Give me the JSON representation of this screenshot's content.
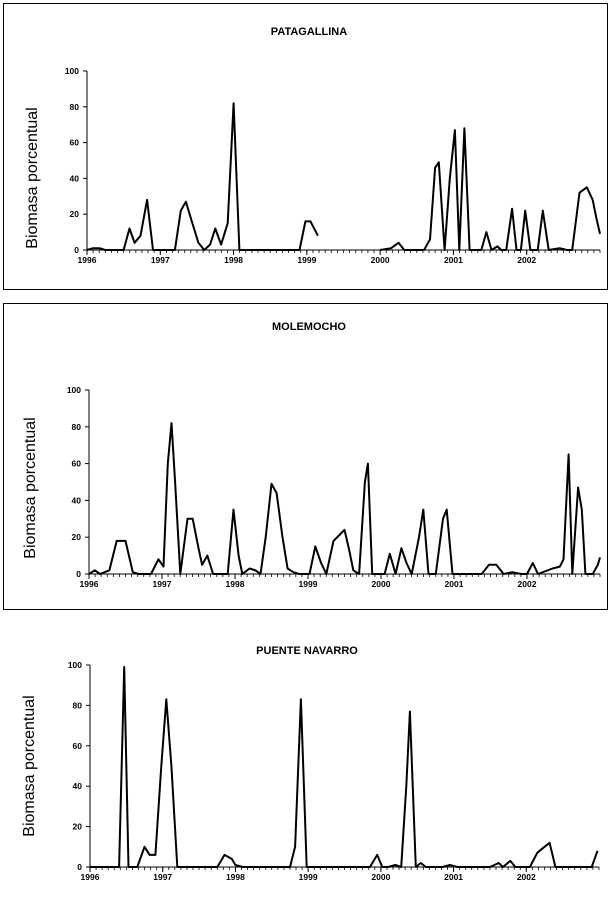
{
  "chart_data": [
    {
      "type": "line",
      "title": "PATAGALLINA",
      "ylabel": "Biomasa porcentual",
      "xlabel": "",
      "ylim": [
        0,
        100
      ],
      "yticks": [
        "0",
        "20",
        "40",
        "60",
        "80",
        "100"
      ],
      "xlim": [
        1996.0,
        2003.0
      ],
      "xticks": [
        "1996",
        "1997",
        "1998",
        "1999",
        "2000",
        "2001",
        "2002"
      ],
      "grid": false,
      "legend": "none",
      "line_color": "#000000",
      "segments": [
        [
          [
            1996.0,
            0
          ],
          [
            1996.08,
            1
          ],
          [
            1996.17,
            1
          ],
          [
            1996.25,
            0
          ],
          [
            1996.5,
            0
          ],
          [
            1996.58,
            12
          ],
          [
            1996.65,
            4
          ],
          [
            1996.73,
            8
          ],
          [
            1996.82,
            28
          ],
          [
            1996.9,
            0
          ],
          [
            1997.2,
            0
          ],
          [
            1997.28,
            22
          ],
          [
            1997.35,
            27
          ],
          [
            1997.43,
            16
          ],
          [
            1997.52,
            4
          ],
          [
            1997.6,
            0
          ],
          [
            1997.68,
            3
          ],
          [
            1997.75,
            12
          ],
          [
            1997.83,
            3
          ],
          [
            1997.92,
            15
          ],
          [
            1998.0,
            82
          ],
          [
            1998.08,
            0
          ],
          [
            1998.9,
            0
          ],
          [
            1998.98,
            16
          ],
          [
            1999.05,
            16
          ],
          [
            1999.15,
            8
          ]
        ],
        [
          [
            2000.0,
            0
          ],
          [
            2000.15,
            1
          ],
          [
            2000.25,
            4
          ],
          [
            2000.33,
            0
          ],
          [
            2000.6,
            0
          ],
          [
            2000.68,
            6
          ],
          [
            2000.75,
            46
          ],
          [
            2000.8,
            49
          ],
          [
            2000.88,
            0
          ],
          [
            2000.95,
            40
          ],
          [
            2001.02,
            67
          ],
          [
            2001.08,
            0
          ],
          [
            2001.15,
            68
          ],
          [
            2001.22,
            0
          ],
          [
            2001.38,
            0
          ],
          [
            2001.45,
            10
          ],
          [
            2001.52,
            0
          ],
          [
            2001.6,
            2
          ],
          [
            2001.65,
            0
          ],
          [
            2001.72,
            0
          ],
          [
            2001.8,
            23
          ],
          [
            2001.86,
            0
          ],
          [
            2001.92,
            0
          ],
          [
            2001.98,
            22
          ],
          [
            2002.05,
            0
          ],
          [
            2002.15,
            0
          ],
          [
            2002.22,
            22
          ],
          [
            2002.3,
            0
          ],
          [
            2002.45,
            1
          ],
          [
            2002.55,
            0
          ],
          [
            2002.62,
            0
          ],
          [
            2002.72,
            32
          ],
          [
            2002.82,
            35
          ],
          [
            2002.9,
            28
          ],
          [
            2002.95,
            18
          ],
          [
            2003.0,
            9
          ]
        ]
      ]
    },
    {
      "type": "line",
      "title": "MOLEMOCHO",
      "ylabel": "Biomasa porcentual",
      "xlabel": "",
      "ylim": [
        0,
        100
      ],
      "yticks": [
        "0",
        "20",
        "40",
        "60",
        "80",
        "100"
      ],
      "xlim": [
        1996.0,
        2003.0
      ],
      "xticks": [
        "1996",
        "1997",
        "1998",
        "1999",
        "2000",
        "2001",
        "2002"
      ],
      "grid": false,
      "legend": "none",
      "line_color": "#000000",
      "segments": [
        [
          [
            1996.0,
            0
          ],
          [
            1996.08,
            2
          ],
          [
            1996.15,
            0
          ],
          [
            1996.28,
            2
          ],
          [
            1996.38,
            18
          ],
          [
            1996.5,
            18
          ],
          [
            1996.6,
            1
          ],
          [
            1996.68,
            0
          ],
          [
            1996.85,
            0
          ],
          [
            1996.95,
            8
          ],
          [
            1997.02,
            4
          ],
          [
            1997.08,
            60
          ],
          [
            1997.13,
            82
          ],
          [
            1997.18,
            50
          ],
          [
            1997.25,
            0
          ],
          [
            1997.35,
            30
          ],
          [
            1997.42,
            30
          ],
          [
            1997.5,
            14
          ],
          [
            1997.55,
            5
          ],
          [
            1997.62,
            10
          ],
          [
            1997.7,
            0
          ],
          [
            1997.9,
            0
          ],
          [
            1997.98,
            35
          ],
          [
            1998.05,
            10
          ],
          [
            1998.1,
            0
          ],
          [
            1998.2,
            3
          ],
          [
            1998.28,
            2
          ],
          [
            1998.35,
            0
          ],
          [
            1998.42,
            20
          ],
          [
            1998.5,
            49
          ],
          [
            1998.57,
            44
          ],
          [
            1998.65,
            20
          ],
          [
            1998.72,
            3
          ],
          [
            1998.8,
            1
          ],
          [
            1998.88,
            0
          ],
          [
            1999.02,
            0
          ],
          [
            1999.1,
            15
          ],
          [
            1999.18,
            6
          ],
          [
            1999.25,
            0
          ],
          [
            1999.35,
            18
          ],
          [
            1999.45,
            22
          ],
          [
            1999.5,
            24
          ],
          [
            1999.57,
            12
          ],
          [
            1999.62,
            2
          ],
          [
            1999.7,
            0
          ],
          [
            1999.78,
            50
          ],
          [
            1999.82,
            60
          ],
          [
            1999.88,
            0
          ],
          [
            2000.05,
            0
          ],
          [
            2000.12,
            11
          ],
          [
            2000.2,
            0
          ],
          [
            2000.28,
            14
          ],
          [
            2000.35,
            6
          ],
          [
            2000.42,
            0
          ],
          [
            2000.52,
            20
          ],
          [
            2000.58,
            35
          ],
          [
            2000.65,
            0
          ],
          [
            2000.75,
            0
          ],
          [
            2000.85,
            30
          ],
          [
            2000.9,
            35
          ],
          [
            2000.98,
            0
          ],
          [
            2001.05,
            0
          ],
          [
            2001.15,
            0
          ],
          [
            2001.38,
            0
          ],
          [
            2001.48,
            5
          ],
          [
            2001.58,
            5
          ],
          [
            2001.68,
            0
          ],
          [
            2001.8,
            1
          ],
          [
            2001.92,
            0
          ],
          [
            2002.0,
            0
          ],
          [
            2002.08,
            6
          ],
          [
            2002.15,
            0
          ],
          [
            2002.35,
            3
          ],
          [
            2002.45,
            4
          ],
          [
            2002.5,
            8
          ],
          [
            2002.57,
            65
          ],
          [
            2002.62,
            0
          ],
          [
            2002.7,
            47
          ],
          [
            2002.75,
            35
          ],
          [
            2002.8,
            0
          ],
          [
            2002.9,
            0
          ],
          [
            2002.97,
            5
          ],
          [
            2003.0,
            9
          ]
        ]
      ]
    },
    {
      "type": "line",
      "title": "PUENTE NAVARRO",
      "ylabel": "Biomasa porcentual",
      "xlabel": "",
      "ylim": [
        0,
        100
      ],
      "yticks": [
        "0",
        "20",
        "40",
        "60",
        "80",
        "100"
      ],
      "xlim": [
        1996.0,
        2003.0
      ],
      "xticks": [
        "1996",
        "1997",
        "1998",
        "1999",
        "2000",
        "2001",
        "2002"
      ],
      "grid": false,
      "legend": "none",
      "line_color": "#000000",
      "segments": [
        [
          [
            1996.0,
            0
          ],
          [
            1996.4,
            0
          ],
          [
            1996.47,
            99
          ],
          [
            1996.53,
            0
          ],
          [
            1996.65,
            0
          ],
          [
            1996.75,
            10
          ],
          [
            1996.82,
            6
          ],
          [
            1996.9,
            6
          ],
          [
            1996.98,
            50
          ],
          [
            1997.05,
            83
          ],
          [
            1997.12,
            50
          ],
          [
            1997.2,
            0
          ],
          [
            1997.3,
            0
          ],
          [
            1997.75,
            0
          ],
          [
            1997.85,
            6
          ],
          [
            1997.95,
            4
          ],
          [
            1998.0,
            1
          ],
          [
            1998.1,
            0
          ],
          [
            1998.75,
            0
          ],
          [
            1998.82,
            10
          ],
          [
            1998.9,
            83
          ],
          [
            1998.98,
            0
          ],
          [
            1999.1,
            0
          ],
          [
            1999.85,
            0
          ],
          [
            1999.95,
            6
          ],
          [
            2000.02,
            0
          ],
          [
            2000.1,
            0
          ],
          [
            2000.2,
            1
          ],
          [
            2000.28,
            0
          ],
          [
            2000.35,
            40
          ],
          [
            2000.4,
            77
          ],
          [
            2000.48,
            0
          ],
          [
            2000.55,
            2
          ],
          [
            2000.62,
            0
          ],
          [
            2000.85,
            0
          ],
          [
            2000.95,
            1
          ],
          [
            2001.05,
            0
          ],
          [
            2001.5,
            0
          ],
          [
            2001.62,
            2
          ],
          [
            2001.68,
            0
          ],
          [
            2001.78,
            3
          ],
          [
            2001.85,
            0
          ],
          [
            2002.05,
            0
          ],
          [
            2002.15,
            7
          ],
          [
            2002.25,
            10
          ],
          [
            2002.32,
            12
          ],
          [
            2002.4,
            0
          ],
          [
            2002.5,
            0
          ],
          [
            2002.9,
            0
          ],
          [
            2002.98,
            8
          ]
        ]
      ]
    }
  ]
}
